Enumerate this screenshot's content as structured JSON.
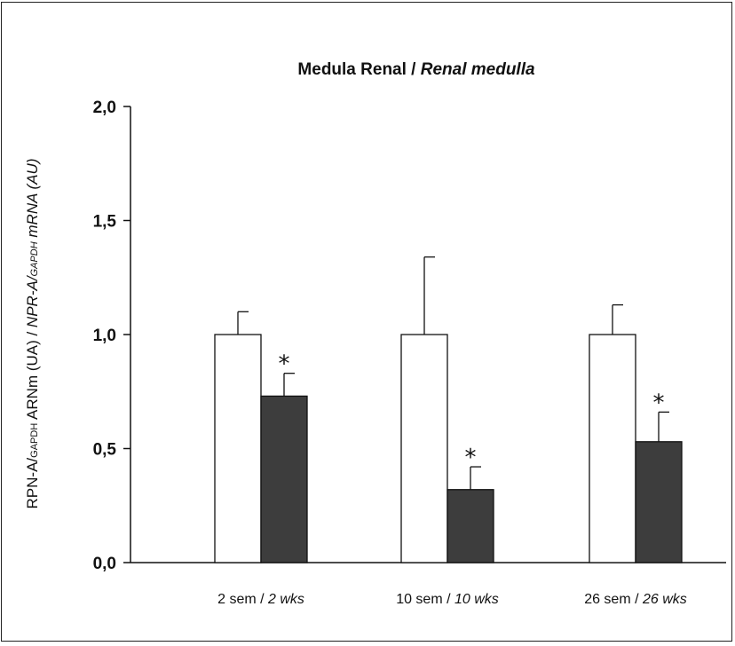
{
  "chart_data": {
    "type": "bar",
    "title": {
      "regular": "Medula Renal / ",
      "italic": "Renal medulla"
    },
    "ylabel": {
      "part1": "RPN-A/",
      "part1_sub": "GAPDH",
      "part2": " ARNm (UA) / ",
      "part3_italic": "NPR-A/",
      "part3_sub": "GAPDH",
      "part4_italic": " mRNA (AU)"
    },
    "categories": [
      {
        "regular": "2 sem / ",
        "italic": "2 wks"
      },
      {
        "regular": "10 sem / ",
        "italic": "10 wks"
      },
      {
        "regular": "26 sem / ",
        "italic": "26 wks"
      }
    ],
    "ylim": [
      0,
      2.0
    ],
    "yticks": [
      "0,0",
      "0,5",
      "1,0",
      "1,5",
      "2,0"
    ],
    "ytick_values": [
      0,
      0.5,
      1.0,
      1.5,
      2.0
    ],
    "series": [
      {
        "values": [
          1.0,
          1.0,
          1.0
        ],
        "errors": [
          0.1,
          0.34,
          0.13
        ],
        "color": "#ffffff"
      },
      {
        "values": [
          0.73,
          0.32,
          0.53
        ],
        "errors": [
          0.1,
          0.1,
          0.13
        ],
        "color": "#3d3d3d"
      }
    ],
    "significance": [
      "*",
      "*",
      "*"
    ],
    "legend": false,
    "grid": false
  }
}
